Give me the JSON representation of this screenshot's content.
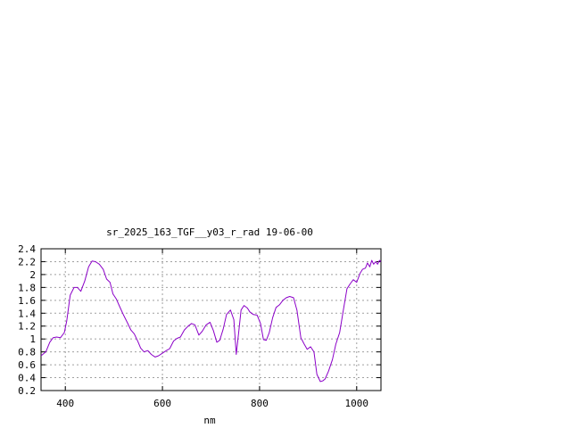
{
  "chart_data": {
    "type": "line",
    "title": "sr_2025_163_TGF__y03_r_rad 19-06-00",
    "xlabel": "nm",
    "ylabel": "",
    "xlim": [
      350,
      1050
    ],
    "ylim": [
      0.2,
      2.4
    ],
    "xticks": [
      400,
      600,
      800,
      1000
    ],
    "xtick_labels": [
      "400",
      "600",
      "800",
      "1000"
    ],
    "yticks": [
      0.2,
      0.4,
      0.6,
      0.8,
      1,
      1.2,
      1.4,
      1.6,
      1.8,
      2,
      2.2,
      2.4
    ],
    "ytick_labels": [
      "0.2",
      "0.4",
      "0.6",
      "0.8",
      "1",
      "1.2",
      "1.4",
      "1.6",
      "1.8",
      "2",
      "2.2",
      "2.4"
    ],
    "grid": true,
    "grid_style": "dotted",
    "line_color": "#8b00c8",
    "series": [
      {
        "x": [
          350,
          360,
          368,
          375,
          382,
          390,
          398,
          403,
          410,
          418,
          425,
          432,
          440,
          448,
          455,
          462,
          470,
          478,
          485,
          492,
          498,
          505,
          512,
          520,
          528,
          535,
          542,
          550,
          555,
          562,
          570,
          577,
          585,
          592,
          600,
          608,
          615,
          623,
          630,
          637,
          645,
          653,
          660,
          667,
          675,
          682,
          690,
          698,
          705,
          712,
          718,
          725,
          732,
          740,
          747,
          752,
          757,
          762,
          768,
          775,
          780,
          787,
          795,
          802,
          808,
          814,
          820,
          827,
          834,
          841,
          848,
          855,
          862,
          870,
          877,
          885,
          892,
          898,
          905,
          912,
          918,
          925,
          930,
          935,
          942,
          950,
          957,
          965,
          972,
          980,
          987,
          993,
          1000,
          1007,
          1012,
          1018,
          1022,
          1027,
          1031,
          1035,
          1039,
          1043,
          1047,
          1050
        ],
        "y": [
          0.74,
          0.8,
          0.95,
          1.02,
          1.03,
          1.02,
          1.1,
          1.28,
          1.68,
          1.8,
          1.8,
          1.74,
          1.9,
          2.12,
          2.21,
          2.2,
          2.16,
          2.08,
          1.93,
          1.88,
          1.7,
          1.62,
          1.5,
          1.37,
          1.25,
          1.14,
          1.08,
          0.95,
          0.86,
          0.8,
          0.82,
          0.76,
          0.72,
          0.74,
          0.78,
          0.82,
          0.85,
          0.97,
          1.01,
          1.03,
          1.14,
          1.2,
          1.24,
          1.22,
          1.06,
          1.12,
          1.22,
          1.26,
          1.13,
          0.95,
          0.98,
          1.15,
          1.38,
          1.45,
          1.3,
          0.76,
          1.1,
          1.45,
          1.52,
          1.48,
          1.42,
          1.38,
          1.37,
          1.24,
          0.99,
          0.98,
          1.1,
          1.33,
          1.49,
          1.53,
          1.6,
          1.64,
          1.66,
          1.64,
          1.45,
          1.02,
          0.92,
          0.84,
          0.88,
          0.8,
          0.45,
          0.34,
          0.35,
          0.38,
          0.5,
          0.68,
          0.92,
          1.1,
          1.42,
          1.78,
          1.86,
          1.92,
          1.88,
          2.02,
          2.08,
          2.1,
          2.18,
          2.12,
          2.22,
          2.16,
          2.2,
          2.16,
          2.22,
          2.2
        ]
      }
    ]
  }
}
